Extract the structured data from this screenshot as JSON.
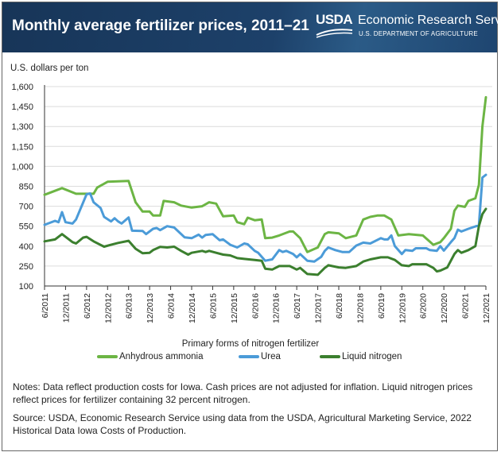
{
  "header": {
    "title": "Monthly average fertilizer prices, 2011–21",
    "logo_text": "USDA",
    "agency": "Economic Research Service",
    "department": "U.S. DEPARTMENT OF AGRICULTURE"
  },
  "notes": "Notes: Data reflect production costs for Iowa. Cash prices are not adjusted for inflation. Liquid nitrogen prices reflect prices for fertilizer containing 32 percent nitrogen.",
  "source": "Source: USDA, Economic Research Service using data from the USDA, Agricultural Marketing Service, 2022 Historical Data Iowa Costs of Production.",
  "chart_data": {
    "type": "line",
    "title": "Monthly average fertilizer prices, 2011–21",
    "ylabel": "U.S. dollars per ton",
    "xlabel": "Primary forms of nitrogen fertilizer",
    "ylim": [
      100,
      1600
    ],
    "xlim": [
      "2011-06",
      "2021-12"
    ],
    "grid": "horizontal",
    "legend_position": "bottom",
    "y_ticks": [
      "1,600",
      "1,450",
      "1,300",
      "1,150",
      "1,000",
      "850",
      "700",
      "550",
      "400",
      "250",
      "100"
    ],
    "x_ticks": [
      "6/2011",
      "12/2011",
      "6/2012",
      "12/2012",
      "6/2013",
      "12/2013",
      "6/2014",
      "12/2014",
      "6/2015",
      "12/2015",
      "6/2016",
      "12/2016",
      "6/2017",
      "12/2017",
      "6/2018",
      "12/2018",
      "6/2019",
      "12/2019",
      "6/2020",
      "12/2020",
      "6/2021",
      "12/2021"
    ],
    "series": [
      {
        "name": "Anhydrous ammonia",
        "color": "#6cb544",
        "points": [
          [
            "2011-06",
            786
          ],
          [
            "2011-11",
            836
          ],
          [
            "2012-03",
            794
          ],
          [
            "2012-08",
            794
          ],
          [
            "2012-09",
            840
          ],
          [
            "2012-12",
            884
          ],
          [
            "2013-06",
            890
          ],
          [
            "2013-08",
            730
          ],
          [
            "2013-10",
            660
          ],
          [
            "2013-12",
            660
          ],
          [
            "2014-01",
            630
          ],
          [
            "2014-03",
            630
          ],
          [
            "2014-04",
            740
          ],
          [
            "2014-07",
            730
          ],
          [
            "2014-09",
            705
          ],
          [
            "2014-12",
            690
          ],
          [
            "2015-03",
            700
          ],
          [
            "2015-05",
            730
          ],
          [
            "2015-07",
            720
          ],
          [
            "2015-09",
            624
          ],
          [
            "2015-12",
            630
          ],
          [
            "2016-01",
            580
          ],
          [
            "2016-03",
            565
          ],
          [
            "2016-04",
            614
          ],
          [
            "2016-06",
            595
          ],
          [
            "2016-08",
            600
          ],
          [
            "2016-09",
            460
          ],
          [
            "2016-11",
            464
          ],
          [
            "2017-01",
            480
          ],
          [
            "2017-04",
            510
          ],
          [
            "2017-05",
            510
          ],
          [
            "2017-07",
            460
          ],
          [
            "2017-09",
            356
          ],
          [
            "2017-12",
            390
          ],
          [
            "2018-02",
            490
          ],
          [
            "2018-03",
            504
          ],
          [
            "2018-06",
            496
          ],
          [
            "2018-08",
            460
          ],
          [
            "2018-11",
            480
          ],
          [
            "2019-01",
            600
          ],
          [
            "2019-03",
            620
          ],
          [
            "2019-05",
            630
          ],
          [
            "2019-07",
            630
          ],
          [
            "2019-09",
            600
          ],
          [
            "2019-11",
            480
          ],
          [
            "2020-02",
            490
          ],
          [
            "2020-06",
            480
          ],
          [
            "2020-09",
            410
          ],
          [
            "2020-11",
            430
          ],
          [
            "2020-12",
            460
          ],
          [
            "2021-02",
            530
          ],
          [
            "2021-03",
            666
          ],
          [
            "2021-04",
            705
          ],
          [
            "2021-06",
            695
          ],
          [
            "2021-07",
            740
          ],
          [
            "2021-09",
            760
          ],
          [
            "2021-10",
            860
          ],
          [
            "2021-11",
            1300
          ],
          [
            "2021-12",
            1520
          ]
        ]
      },
      {
        "name": "Urea",
        "color": "#4b9bd8",
        "points": [
          [
            "2011-06",
            560
          ],
          [
            "2011-09",
            590
          ],
          [
            "2011-10",
            580
          ],
          [
            "2011-11",
            656
          ],
          [
            "2011-12",
            580
          ],
          [
            "2012-02",
            570
          ],
          [
            "2012-03",
            600
          ],
          [
            "2012-06",
            790
          ],
          [
            "2012-07",
            796
          ],
          [
            "2012-08",
            730
          ],
          [
            "2012-10",
            686
          ],
          [
            "2012-11",
            620
          ],
          [
            "2013-01",
            586
          ],
          [
            "2013-02",
            610
          ],
          [
            "2013-03",
            586
          ],
          [
            "2013-04",
            570
          ],
          [
            "2013-06",
            616
          ],
          [
            "2013-07",
            516
          ],
          [
            "2013-10",
            514
          ],
          [
            "2013-11",
            490
          ],
          [
            "2014-01",
            530
          ],
          [
            "2014-02",
            536
          ],
          [
            "2014-03",
            520
          ],
          [
            "2014-05",
            550
          ],
          [
            "2014-07",
            540
          ],
          [
            "2014-10",
            466
          ],
          [
            "2014-12",
            460
          ],
          [
            "2015-02",
            486
          ],
          [
            "2015-03",
            464
          ],
          [
            "2015-04",
            484
          ],
          [
            "2015-06",
            490
          ],
          [
            "2015-08",
            444
          ],
          [
            "2015-09",
            450
          ],
          [
            "2015-11",
            410
          ],
          [
            "2016-01",
            390
          ],
          [
            "2016-03",
            420
          ],
          [
            "2016-04",
            414
          ],
          [
            "2016-06",
            364
          ],
          [
            "2016-07",
            350
          ],
          [
            "2016-09",
            290
          ],
          [
            "2016-11",
            300
          ],
          [
            "2017-01",
            370
          ],
          [
            "2017-02",
            356
          ],
          [
            "2017-03",
            364
          ],
          [
            "2017-05",
            340
          ],
          [
            "2017-06",
            316
          ],
          [
            "2017-07",
            340
          ],
          [
            "2017-09",
            290
          ],
          [
            "2017-11",
            284
          ],
          [
            "2018-01",
            320
          ],
          [
            "2018-02",
            364
          ],
          [
            "2018-03",
            390
          ],
          [
            "2018-05",
            370
          ],
          [
            "2018-07",
            356
          ],
          [
            "2018-09",
            356
          ],
          [
            "2018-11",
            404
          ],
          [
            "2019-01",
            426
          ],
          [
            "2019-03",
            420
          ],
          [
            "2019-06",
            460
          ],
          [
            "2019-07",
            450
          ],
          [
            "2019-08",
            450
          ],
          [
            "2019-09",
            480
          ],
          [
            "2019-10",
            400
          ],
          [
            "2019-12",
            340
          ],
          [
            "2020-01",
            370
          ],
          [
            "2020-03",
            364
          ],
          [
            "2020-04",
            384
          ],
          [
            "2020-07",
            384
          ],
          [
            "2020-08",
            370
          ],
          [
            "2020-10",
            364
          ],
          [
            "2020-11",
            400
          ],
          [
            "2020-12",
            366
          ],
          [
            "2021-02",
            430
          ],
          [
            "2021-03",
            460
          ],
          [
            "2021-04",
            524
          ],
          [
            "2021-05",
            510
          ],
          [
            "2021-07",
            530
          ],
          [
            "2021-09",
            548
          ],
          [
            "2021-10",
            556
          ],
          [
            "2021-11",
            916
          ],
          [
            "2021-12",
            936
          ]
        ]
      },
      {
        "name": "Liquid nitrogen",
        "color": "#3b7f2e",
        "points": [
          [
            "2011-06",
            436
          ],
          [
            "2011-09",
            450
          ],
          [
            "2011-11",
            490
          ],
          [
            "2011-12",
            470
          ],
          [
            "2012-02",
            430
          ],
          [
            "2012-03",
            420
          ],
          [
            "2012-05",
            464
          ],
          [
            "2012-06",
            470
          ],
          [
            "2012-08",
            436
          ],
          [
            "2012-11",
            396
          ],
          [
            "2013-01",
            410
          ],
          [
            "2013-03",
            424
          ],
          [
            "2013-06",
            440
          ],
          [
            "2013-08",
            380
          ],
          [
            "2013-10",
            346
          ],
          [
            "2013-12",
            350
          ],
          [
            "2014-01",
            370
          ],
          [
            "2014-03",
            394
          ],
          [
            "2014-05",
            390
          ],
          [
            "2014-07",
            396
          ],
          [
            "2014-09",
            364
          ],
          [
            "2014-11",
            336
          ],
          [
            "2014-12",
            350
          ],
          [
            "2015-03",
            364
          ],
          [
            "2015-04",
            356
          ],
          [
            "2015-05",
            364
          ],
          [
            "2015-07",
            350
          ],
          [
            "2015-09",
            336
          ],
          [
            "2015-11",
            330
          ],
          [
            "2016-01",
            310
          ],
          [
            "2016-03",
            304
          ],
          [
            "2016-06",
            296
          ],
          [
            "2016-08",
            290
          ],
          [
            "2016-09",
            230
          ],
          [
            "2016-11",
            224
          ],
          [
            "2017-01",
            250
          ],
          [
            "2017-04",
            250
          ],
          [
            "2017-06",
            224
          ],
          [
            "2017-07",
            236
          ],
          [
            "2017-09",
            190
          ],
          [
            "2017-12",
            184
          ],
          [
            "2018-02",
            236
          ],
          [
            "2018-03",
            256
          ],
          [
            "2018-06",
            240
          ],
          [
            "2018-08",
            236
          ],
          [
            "2018-11",
            250
          ],
          [
            "2019-01",
            284
          ],
          [
            "2019-03",
            300
          ],
          [
            "2019-06",
            316
          ],
          [
            "2019-08",
            316
          ],
          [
            "2019-10",
            296
          ],
          [
            "2019-12",
            256
          ],
          [
            "2020-02",
            250
          ],
          [
            "2020-03",
            264
          ],
          [
            "2020-07",
            264
          ],
          [
            "2020-09",
            236
          ],
          [
            "2020-10",
            210
          ],
          [
            "2020-11",
            216
          ],
          [
            "2021-01",
            240
          ],
          [
            "2021-03",
            340
          ],
          [
            "2021-04",
            370
          ],
          [
            "2021-05",
            350
          ],
          [
            "2021-07",
            370
          ],
          [
            "2021-09",
            400
          ],
          [
            "2021-10",
            550
          ],
          [
            "2021-11",
            640
          ],
          [
            "2021-12",
            680
          ]
        ]
      }
    ]
  }
}
